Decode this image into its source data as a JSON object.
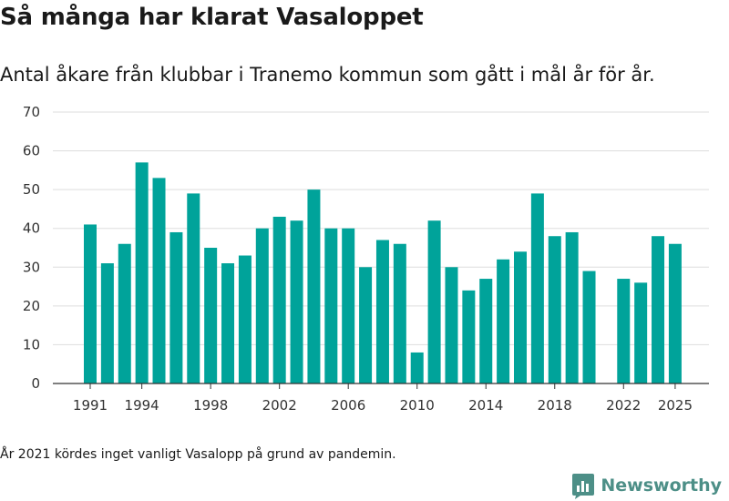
{
  "title": "Så många har klarat Vasaloppet",
  "subtitle": "Antal åkare från klubbar i Tranemo kommun som gått i mål år för år.",
  "footnote": "År 2021 kördes inget vanligt Vasalopp på grund av pandemin.",
  "brand": {
    "name": "Newsworthy",
    "color": "#4d8f87",
    "logo_icon": "bar-chart-doc-icon"
  },
  "colors": {
    "bar": "#00a39a",
    "grid": "#dddddd",
    "axis": "#333333"
  },
  "chart_data": {
    "type": "bar",
    "title": "Så många har klarat Vasaloppet",
    "subtitle": "Antal åkare från klubbar i Tranemo kommun som gått i mål år för år.",
    "xlabel": "",
    "ylabel": "",
    "ylim": [
      0,
      70
    ],
    "yticks": [
      0,
      10,
      20,
      30,
      40,
      50,
      60,
      70
    ],
    "xticks": [
      1991,
      1994,
      1998,
      2002,
      2006,
      2010,
      2014,
      2018,
      2022,
      2025
    ],
    "grid": true,
    "legend": "none",
    "x": [
      1991,
      1992,
      1993,
      1994,
      1995,
      1996,
      1997,
      1998,
      1999,
      2000,
      2001,
      2002,
      2003,
      2004,
      2005,
      2006,
      2007,
      2008,
      2009,
      2010,
      2011,
      2012,
      2013,
      2014,
      2015,
      2016,
      2017,
      2018,
      2019,
      2020,
      2021,
      2022,
      2023,
      2024,
      2025
    ],
    "values": [
      41,
      31,
      36,
      57,
      53,
      39,
      49,
      35,
      31,
      33,
      40,
      43,
      42,
      50,
      40,
      40,
      30,
      37,
      36,
      8,
      42,
      30,
      24,
      27,
      32,
      34,
      49,
      38,
      39,
      29,
      null,
      27,
      26,
      38,
      36
    ]
  }
}
